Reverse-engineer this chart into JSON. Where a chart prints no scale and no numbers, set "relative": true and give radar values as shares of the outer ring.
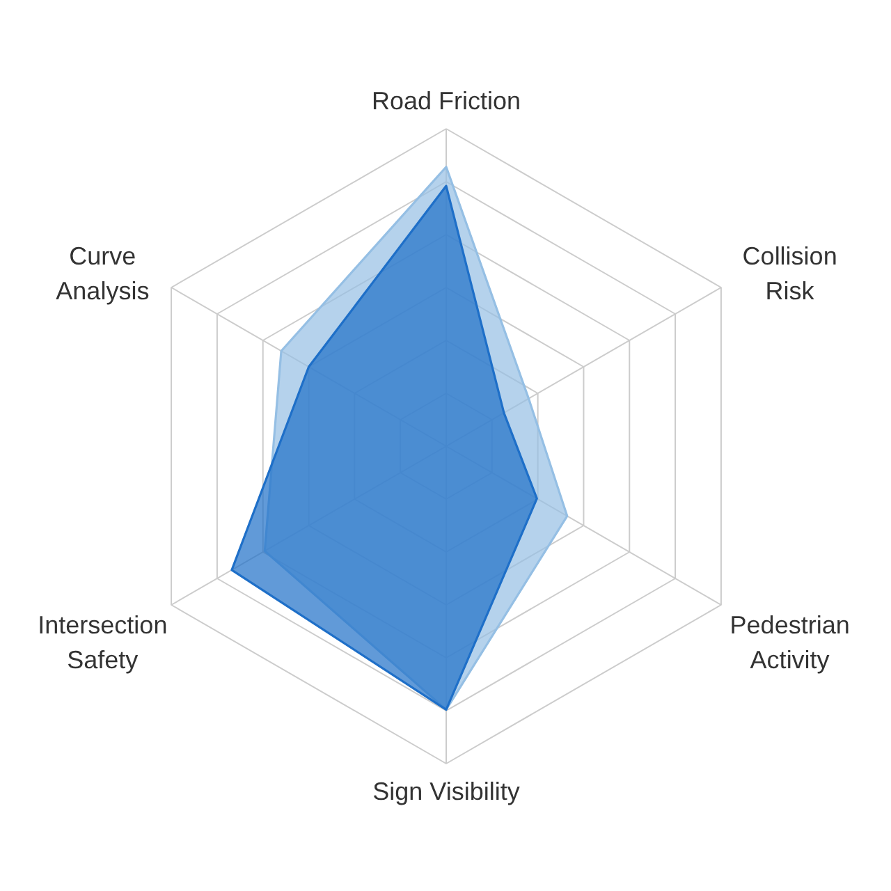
{
  "chart_data": {
    "type": "radar",
    "relative": true,
    "grid": true,
    "categories": [
      "Road Friction",
      "Collision\nRisk",
      "Pedestrian\nActivity",
      "Sign Visibility",
      "Intersection\nSafety",
      "Curve\nAnalysis"
    ],
    "series": [
      {
        "color": "#95bfe4",
        "values": [
          0.88,
          0.3,
          0.44,
          0.83,
          0.66,
          0.6
        ]
      },
      {
        "color": "#1e6fc8",
        "values": [
          0.82,
          0.21,
          0.33,
          0.83,
          0.78,
          0.5
        ]
      }
    ]
  }
}
